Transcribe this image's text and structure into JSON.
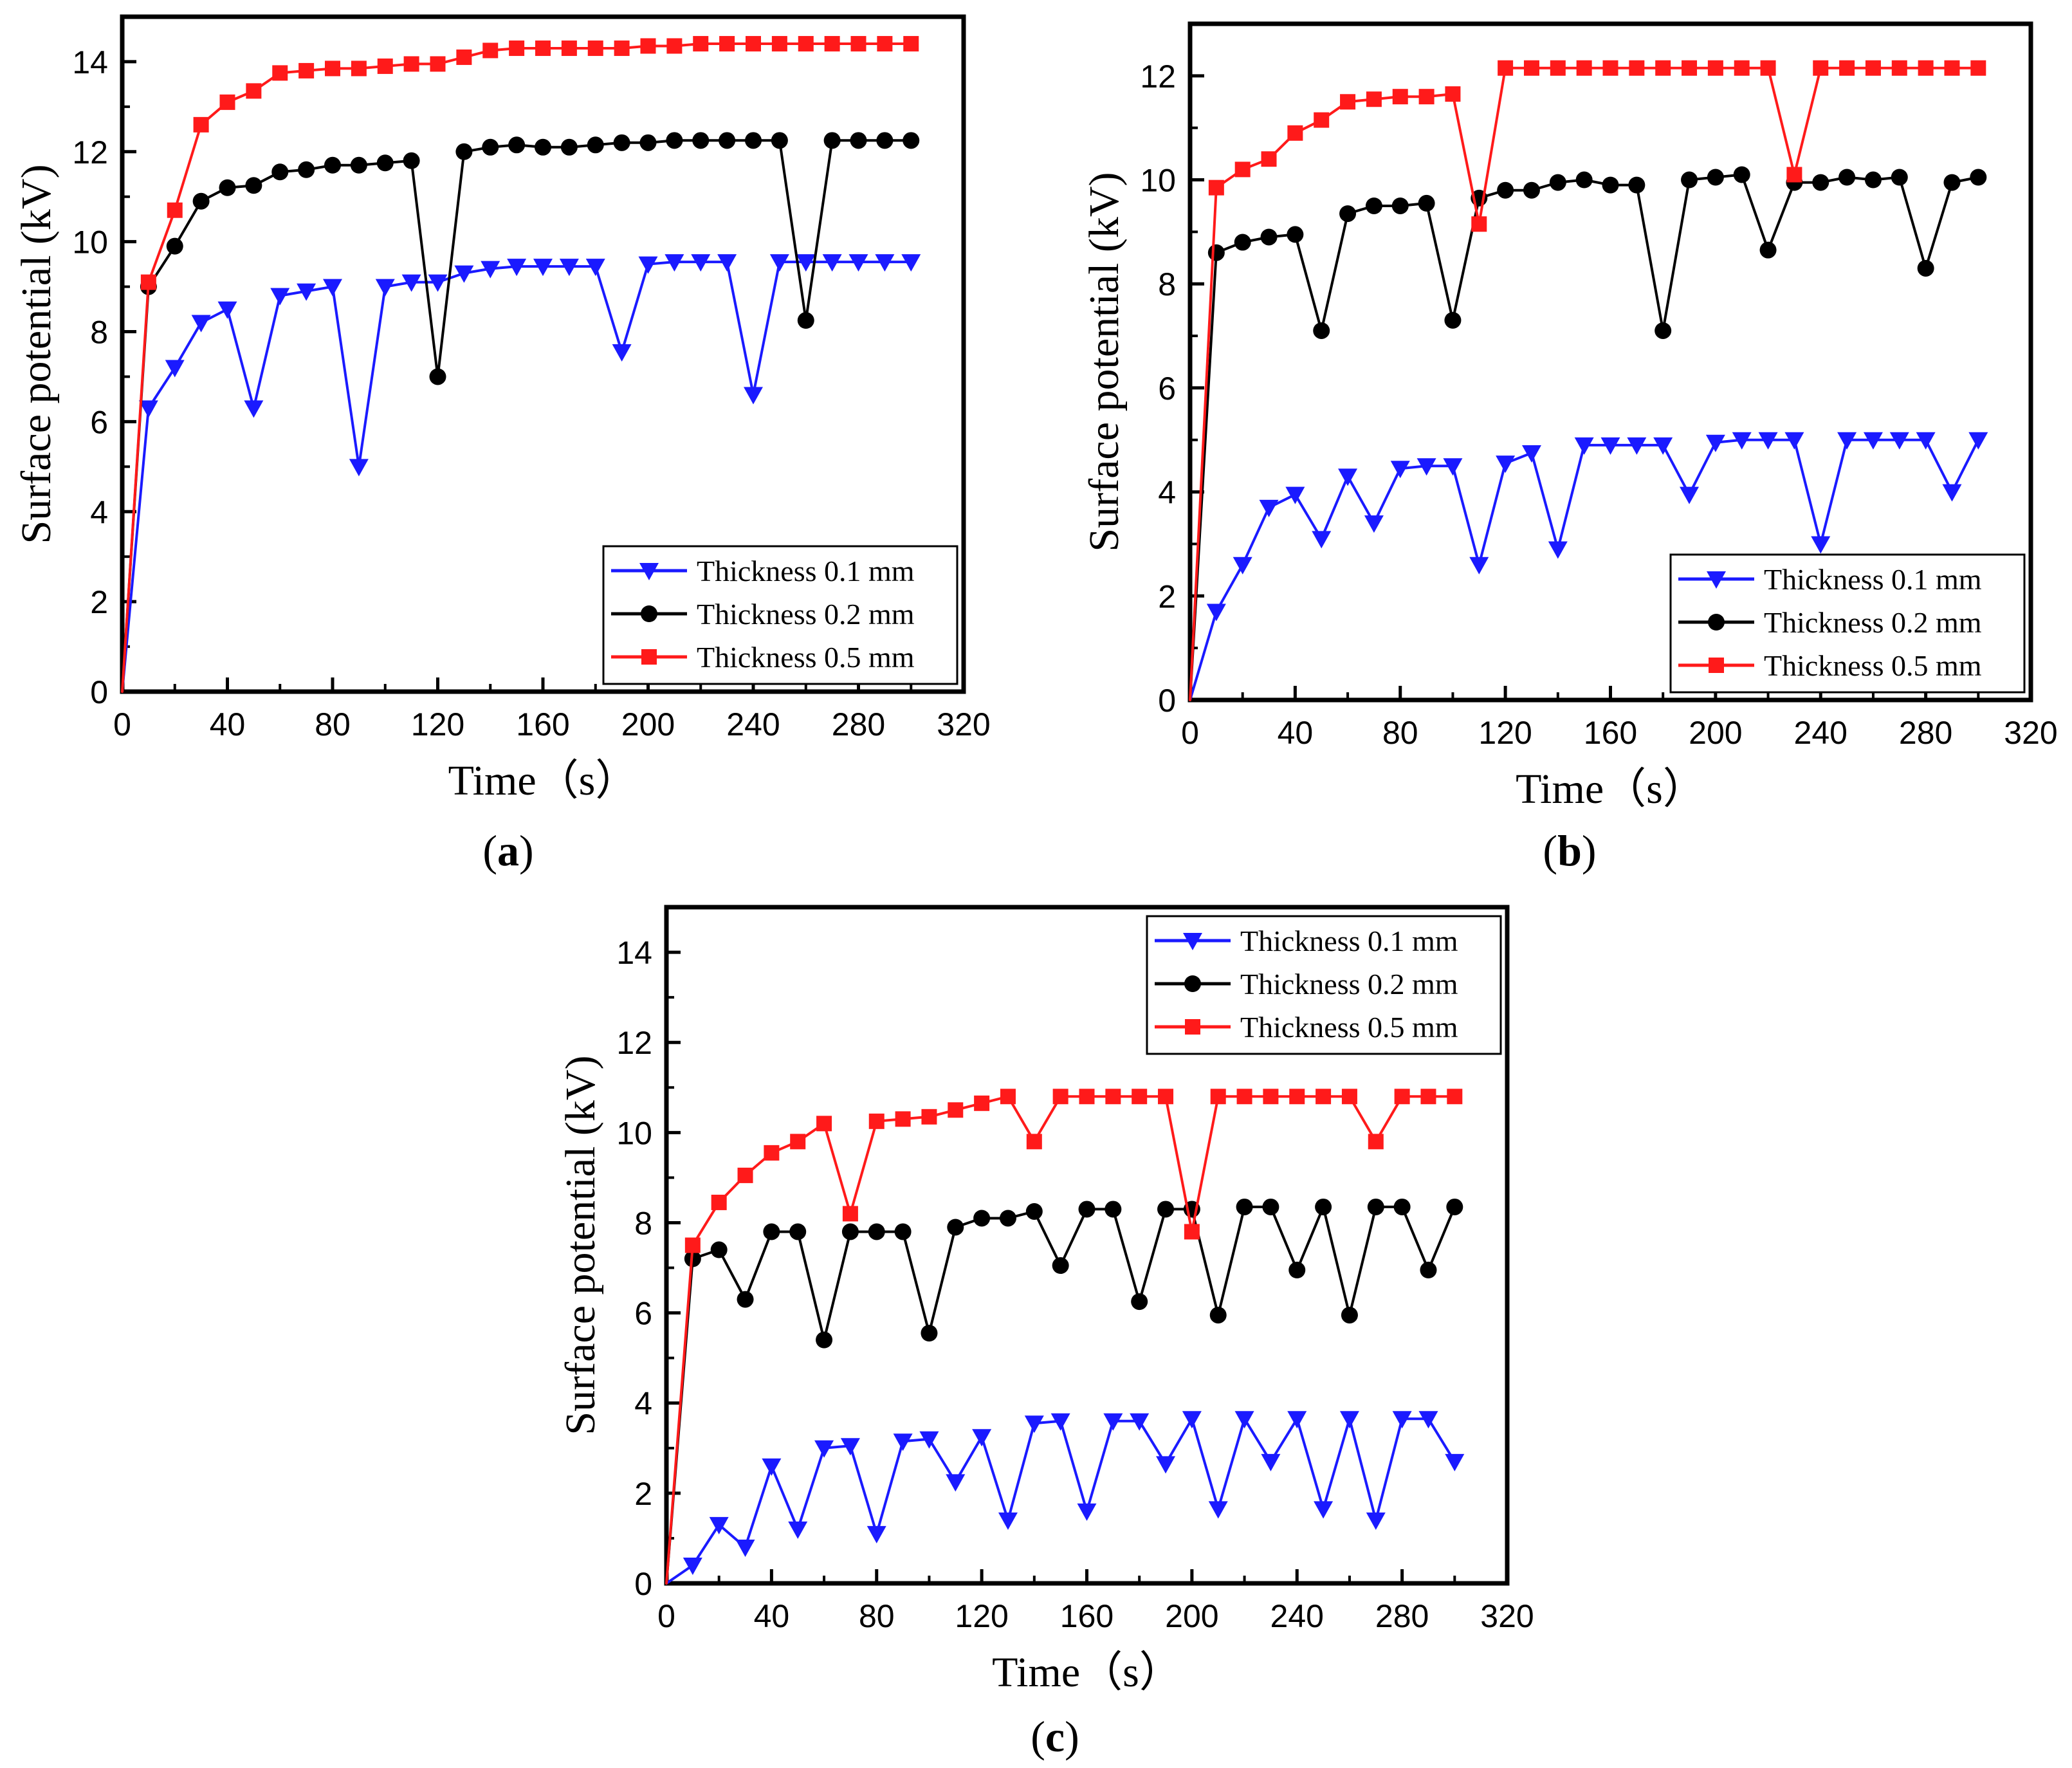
{
  "chart_data": [
    {
      "type": "line",
      "panel": "a",
      "xlabel": "Time（s）",
      "ylabel": "Surface potential (kV)",
      "xlim": [
        0,
        320
      ],
      "ylim": [
        0,
        15
      ],
      "xticks": [
        0,
        40,
        80,
        120,
        160,
        200,
        240,
        280,
        320
      ],
      "yticks": [
        0,
        2,
        4,
        6,
        8,
        10,
        12,
        14
      ],
      "legend_position": "bottom-right",
      "x": [
        0,
        10,
        20,
        30,
        40,
        50,
        60,
        70,
        80,
        90,
        100,
        110,
        120,
        130,
        140,
        150,
        160,
        170,
        180,
        190,
        200,
        210,
        220,
        230,
        240,
        250,
        260,
        270,
        280,
        290,
        300
      ],
      "series": [
        {
          "name": "Thickness 0.1 mm",
          "color": "#1a1aff",
          "marker": "triangle-down",
          "values": [
            0,
            6.3,
            7.2,
            8.2,
            8.5,
            6.3,
            8.8,
            8.9,
            9.0,
            5.0,
            9.0,
            9.1,
            9.1,
            9.3,
            9.4,
            9.45,
            9.45,
            9.45,
            9.45,
            7.55,
            9.5,
            9.55,
            9.55,
            9.55,
            6.6,
            9.55,
            9.55,
            9.55,
            9.55,
            9.55,
            9.55
          ]
        },
        {
          "name": "Thickness 0.2 mm",
          "color": "#000000",
          "marker": "circle",
          "values": [
            0,
            9.0,
            9.9,
            10.9,
            11.2,
            11.25,
            11.55,
            11.6,
            11.7,
            11.7,
            11.75,
            11.8,
            7.0,
            12.0,
            12.1,
            12.15,
            12.1,
            12.1,
            12.15,
            12.2,
            12.2,
            12.25,
            12.25,
            12.25,
            12.25,
            12.25,
            8.25,
            12.25,
            12.25,
            12.25,
            12.25
          ]
        },
        {
          "name": "Thickness 0.5 mm",
          "color": "#ff1a1a",
          "marker": "square",
          "values": [
            0,
            9.1,
            10.7,
            12.6,
            13.1,
            13.35,
            13.75,
            13.8,
            13.85,
            13.85,
            13.9,
            13.95,
            13.95,
            14.1,
            14.25,
            14.3,
            14.3,
            14.3,
            14.3,
            14.3,
            14.35,
            14.35,
            14.4,
            14.4,
            14.4,
            14.4,
            14.4,
            14.4,
            14.4,
            14.4,
            14.4
          ]
        }
      ]
    },
    {
      "type": "line",
      "panel": "b",
      "xlabel": "Time（s）",
      "ylabel": "Surface potential (kV)",
      "xlim": [
        0,
        320
      ],
      "ylim": [
        0,
        13
      ],
      "xticks": [
        0,
        40,
        80,
        120,
        160,
        200,
        240,
        280,
        320
      ],
      "yticks": [
        0,
        2,
        4,
        6,
        8,
        10,
        12
      ],
      "legend_position": "bottom-right",
      "x": [
        0,
        10,
        20,
        30,
        40,
        50,
        60,
        70,
        80,
        90,
        100,
        110,
        120,
        130,
        140,
        150,
        160,
        170,
        180,
        190,
        200,
        210,
        220,
        230,
        240,
        250,
        260,
        270,
        280,
        290,
        300
      ],
      "series": [
        {
          "name": "Thickness 0.1 mm",
          "color": "#1a1aff",
          "marker": "triangle-down",
          "values": [
            0,
            1.7,
            2.6,
            3.7,
            3.95,
            3.1,
            4.3,
            3.4,
            4.45,
            4.5,
            4.5,
            2.6,
            4.55,
            4.75,
            2.9,
            4.9,
            4.9,
            4.9,
            4.9,
            3.95,
            4.95,
            5.0,
            5.0,
            5.0,
            3.0,
            5.0,
            5.0,
            5.0,
            5.0,
            4.0,
            5.0
          ]
        },
        {
          "name": "Thickness 0.2 mm",
          "color": "#000000",
          "marker": "circle",
          "values": [
            0,
            8.6,
            8.8,
            8.9,
            8.95,
            7.1,
            9.35,
            9.5,
            9.5,
            9.55,
            7.3,
            9.65,
            9.8,
            9.8,
            9.95,
            10.0,
            9.9,
            9.9,
            7.1,
            10.0,
            10.05,
            10.1,
            8.65,
            9.95,
            9.95,
            10.05,
            10.0,
            10.05,
            8.3,
            9.95,
            10.05
          ]
        },
        {
          "name": "Thickness 0.5 mm",
          "color": "#ff1a1a",
          "marker": "square",
          "values": [
            0,
            9.85,
            10.2,
            10.4,
            10.9,
            11.15,
            11.5,
            11.55,
            11.6,
            11.6,
            11.65,
            9.15,
            12.15,
            12.15,
            12.15,
            12.15,
            12.15,
            12.15,
            12.15,
            12.15,
            12.15,
            12.15,
            12.15,
            10.1,
            12.15,
            12.15,
            12.15,
            12.15,
            12.15,
            12.15,
            12.15
          ]
        }
      ]
    },
    {
      "type": "line",
      "panel": "c",
      "xlabel": "Time（s）",
      "ylabel": "Surface potential (kV)",
      "xlim": [
        0,
        320
      ],
      "ylim": [
        0,
        15
      ],
      "xticks": [
        0,
        40,
        80,
        120,
        160,
        200,
        240,
        280,
        320
      ],
      "yticks": [
        0,
        2,
        4,
        6,
        8,
        10,
        12,
        14
      ],
      "legend_position": "top-right",
      "x": [
        0,
        10,
        20,
        30,
        40,
        50,
        60,
        70,
        80,
        90,
        100,
        110,
        120,
        130,
        140,
        150,
        160,
        170,
        180,
        190,
        200,
        210,
        220,
        230,
        240,
        250,
        260,
        270,
        280,
        290,
        300
      ],
      "series": [
        {
          "name": "Thickness 0.1 mm",
          "color": "#1a1aff",
          "marker": "triangle-down",
          "values": [
            0,
            0.4,
            1.3,
            0.8,
            2.6,
            1.2,
            3.0,
            3.05,
            1.1,
            3.15,
            3.2,
            2.25,
            3.25,
            1.4,
            3.55,
            3.6,
            1.6,
            3.6,
            3.6,
            2.65,
            3.65,
            1.65,
            3.65,
            2.7,
            3.65,
            1.65,
            3.65,
            1.4,
            3.65,
            3.65,
            2.7
          ]
        },
        {
          "name": "Thickness 0.2 mm",
          "color": "#000000",
          "marker": "circle",
          "values": [
            0,
            7.2,
            7.4,
            6.3,
            7.8,
            7.8,
            5.4,
            7.8,
            7.8,
            7.8,
            5.55,
            7.9,
            8.1,
            8.1,
            8.25,
            7.05,
            8.3,
            8.3,
            6.25,
            8.3,
            8.3,
            5.95,
            8.35,
            8.35,
            6.95,
            8.35,
            5.95,
            8.35,
            8.35,
            6.95,
            8.35
          ]
        },
        {
          "name": "Thickness 0.5 mm",
          "color": "#ff1a1a",
          "marker": "square",
          "values": [
            0,
            7.5,
            8.45,
            9.05,
            9.55,
            9.8,
            10.2,
            8.2,
            10.25,
            10.3,
            10.35,
            10.5,
            10.65,
            10.8,
            9.8,
            10.8,
            10.8,
            10.8,
            10.8,
            10.8,
            7.8,
            10.8,
            10.8,
            10.8,
            10.8,
            10.8,
            10.8,
            9.8,
            10.8,
            10.8,
            10.8
          ]
        }
      ]
    }
  ],
  "panel_labels": [
    "(a)",
    "(b)",
    "(c)"
  ],
  "panel_letters": [
    "a",
    "b",
    "c"
  ]
}
